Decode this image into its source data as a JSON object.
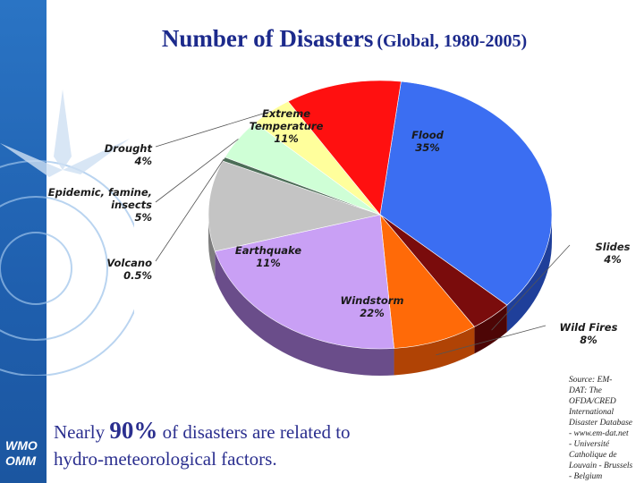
{
  "title": {
    "main": "Number of Disasters",
    "sub": "(Global, 1980-2005)"
  },
  "note": {
    "pre": "Nearly",
    "highlight": "90%",
    "post": "of disasters are related to",
    "line2": "hydro-meteorological factors."
  },
  "source": [
    "Source: EM-",
    "DAT: The",
    "OFDA/CRED",
    "International",
    "Disaster Database",
    "- www.em-dat.net",
    "- Université",
    "Catholique de",
    "Louvain - Brussels",
    "- Belgium"
  ],
  "logo": {
    "line1": "WMO",
    "line2": "OMM"
  },
  "chart_data": {
    "type": "pie",
    "title": "Number of Disasters (Global, 1980-2005)",
    "slices": [
      {
        "name": "Flood",
        "value": 35,
        "label": "35%",
        "color": "#3b6ef2",
        "side": "#1f3f9a"
      },
      {
        "name": "Slides",
        "value": 4,
        "label": "4%",
        "color": "#7a0c0c",
        "side": "#4d0606"
      },
      {
        "name": "Wild Fires",
        "value": 8,
        "label": "8%",
        "color": "#ff6a08",
        "side": "#b04305"
      },
      {
        "name": "Windstorm",
        "value": 22,
        "label": "22%",
        "color": "#c9a0f5",
        "side": "#6a4d8a"
      },
      {
        "name": "Earthquake",
        "value": 11,
        "label": "11%",
        "color": "#c4c4c4",
        "side": "#7e7e7e"
      },
      {
        "name": "Volcano",
        "value": 0.5,
        "label": "0.5%",
        "color": "#4c6d57",
        "side": "#344b3c"
      },
      {
        "name": "Epidemic, famine, insects",
        "value": 5,
        "label": "5%",
        "color": "#cfffd6",
        "side": "#8bb593"
      },
      {
        "name": "Drought",
        "value": 4,
        "label": "4%",
        "color": "#ffff9c",
        "side": "#b7b76a"
      },
      {
        "name": "Extreme Temperature",
        "value": 11,
        "label": "11%",
        "color": "#ff1010",
        "side": "#a00a0a"
      }
    ]
  }
}
